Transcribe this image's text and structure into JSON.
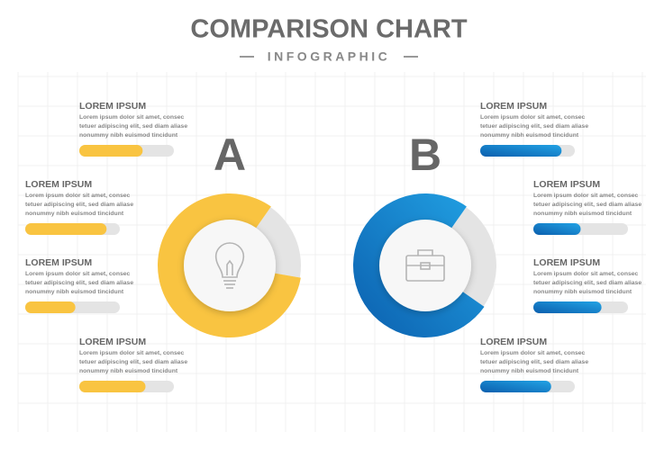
{
  "header": {
    "title": "COMPARISON CHART",
    "subtitle": "INFOGRAPHIC"
  },
  "panels": [
    {
      "label": "A",
      "color": "#f9c441",
      "donut_value": 82,
      "items": [
        {
          "title": "LOREM IPSUM",
          "lines": [
            "Lorem ipsum dolor sit amet, consec",
            "tetuer adipiscing elit, sed diam aliase",
            "nonummy nibh euismod tincidunt"
          ],
          "value": 67
        },
        {
          "title": "LOREM IPSUM",
          "lines": [
            "Lorem ipsum dolor sit amet, consec",
            "tetuer adipiscing elit, sed diam aliase",
            "nonummy nibh euismod tincidunt"
          ],
          "value": 86
        },
        {
          "title": "LOREM IPSUM",
          "lines": [
            "Lorem ipsum dolor sit amet, consec",
            "tetuer adipiscing elit, sed diam aliase",
            "nonummy nibh euismod tincidunt"
          ],
          "value": 53
        },
        {
          "title": "LOREM IPSUM",
          "lines": [
            "Lorem ipsum dolor sit amet, consec",
            "tetuer adipiscing elit, sed diam aliase",
            "nonummy nibh euismod tincidunt"
          ],
          "value": 70
        }
      ]
    },
    {
      "label": "B",
      "color": "#1478c8",
      "donut_value": 75,
      "items": [
        {
          "title": "LOREM IPSUM",
          "lines": [
            "Lorem ipsum dolor sit amet, consec",
            "tetuer adipiscing elit, sed diam aliase",
            "nonummy nibh euismod tincidunt"
          ],
          "value": 86
        },
        {
          "title": "LOREM IPSUM",
          "lines": [
            "Lorem ipsum dolor sit amet, consec",
            "tetuer adipiscing elit, sed diam aliase",
            "nonummy nibh euismod tincidunt"
          ],
          "value": 50
        },
        {
          "title": "LOREM IPSUM",
          "lines": [
            "Lorem ipsum dolor sit amet, consec",
            "tetuer adipiscing elit, sed diam aliase",
            "nonummy nibh euismod tincidunt"
          ],
          "value": 72
        },
        {
          "title": "LOREM IPSUM",
          "lines": [
            "Lorem ipsum dolor sit amet, consec",
            "tetuer adipiscing elit, sed diam aliase",
            "nonummy nibh euismod tincidunt"
          ],
          "value": 75
        }
      ]
    }
  ]
}
